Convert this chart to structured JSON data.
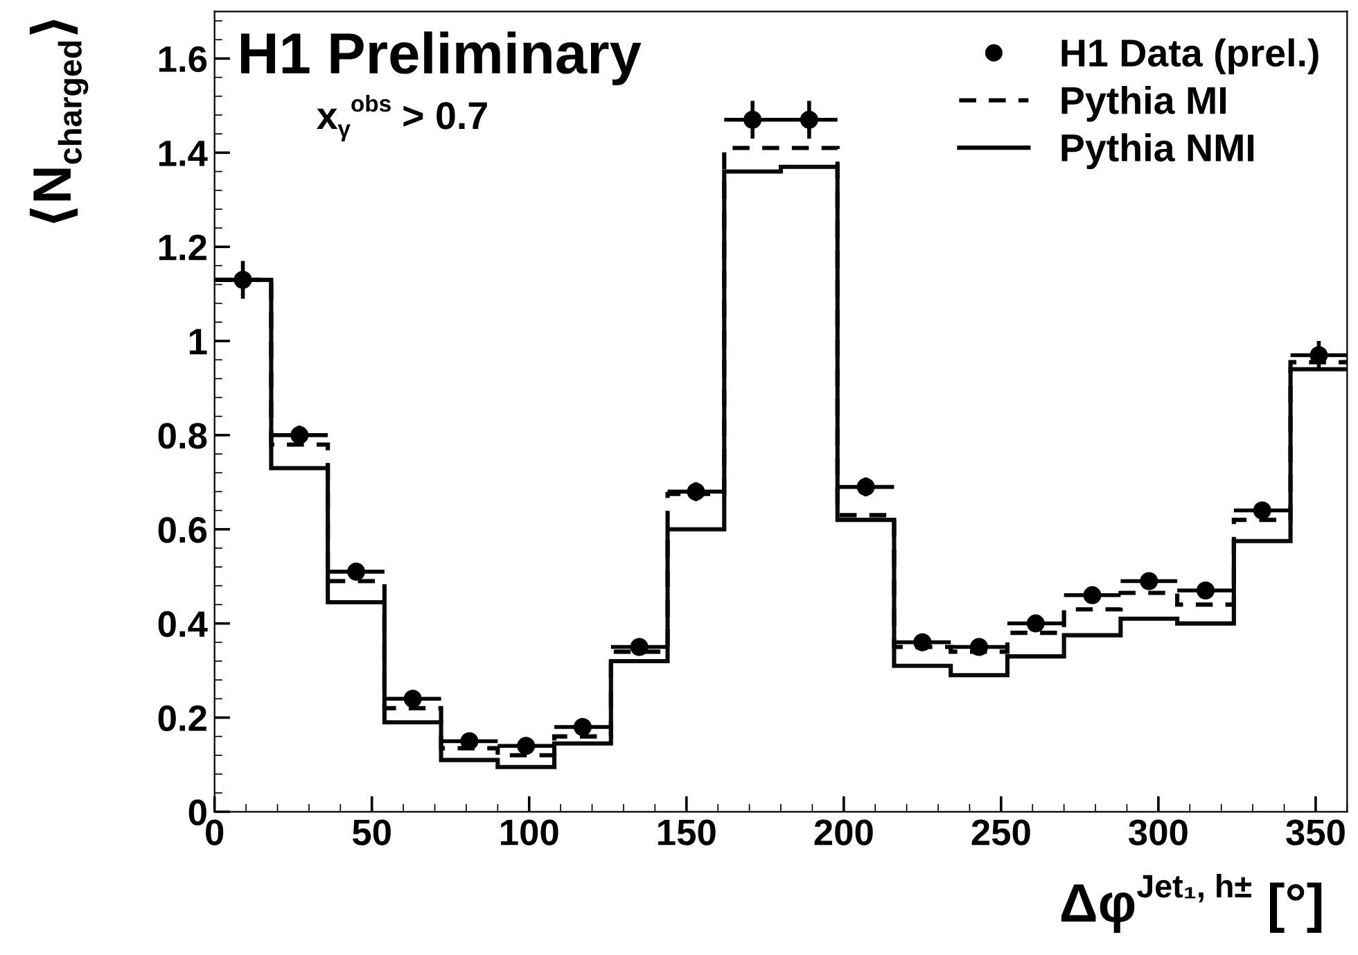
{
  "chart_data": {
    "type": "histogram",
    "title": "H1 Preliminary",
    "xlabel": "Δφ$^{Jet₁, h±}$ [°]",
    "ylabel": "⟨N$_{charged}$⟩",
    "annotations": [
      "x$_{γ}$$^{obs}$ > 0.7"
    ],
    "bins": [
      0,
      18,
      36,
      54,
      72,
      90,
      108,
      126,
      144,
      162,
      180,
      198,
      216,
      234,
      252,
      270,
      288,
      306,
      324,
      342,
      360
    ],
    "series": [
      {
        "name": "H1 Data (prel.)",
        "type": "scatter",
        "color": "#000000",
        "marker": "circle",
        "x": [
          9,
          27,
          45,
          63,
          81,
          99,
          117,
          135,
          153,
          171,
          189,
          207,
          225,
          243,
          261,
          279,
          297,
          315,
          333,
          351
        ],
        "values": [
          1.13,
          0.8,
          0.51,
          0.24,
          0.15,
          0.14,
          0.18,
          0.35,
          0.68,
          1.47,
          1.47,
          0.69,
          0.36,
          0.35,
          0.4,
          0.46,
          0.49,
          0.47,
          0.64,
          0.97
        ],
        "errors": [
          0.04,
          0.02,
          0.015,
          0.01,
          0.01,
          0.01,
          0.01,
          0.01,
          0.02,
          0.04,
          0.04,
          0.02,
          0.01,
          0.01,
          0.015,
          0.015,
          0.015,
          0.015,
          0.015,
          0.03
        ],
        "xerrors": [
          9,
          9,
          9,
          9,
          9,
          9,
          9,
          9,
          9,
          9,
          9,
          9,
          9,
          9,
          9,
          9,
          9,
          9,
          9,
          9
        ]
      },
      {
        "name": "Pythia MI",
        "color": "#000000",
        "line_style": "dashed",
        "values": [
          1.13,
          0.78,
          0.49,
          0.22,
          0.135,
          0.12,
          0.16,
          0.34,
          0.675,
          1.41,
          1.41,
          0.63,
          0.35,
          0.34,
          0.38,
          0.43,
          0.465,
          0.44,
          0.62,
          0.955
        ]
      },
      {
        "name": "Pythia NMI",
        "color": "#0a0a0a",
        "line_style": "solid",
        "values": [
          1.13,
          0.73,
          0.445,
          0.19,
          0.11,
          0.095,
          0.145,
          0.32,
          0.6,
          1.36,
          1.37,
          0.62,
          0.31,
          0.29,
          0.33,
          0.375,
          0.41,
          0.4,
          0.575,
          0.94
        ]
      }
    ],
    "xlim": [
      0,
      360
    ],
    "xticks": [
      0,
      50,
      100,
      150,
      200,
      250,
      300,
      350
    ],
    "ylim": [
      0,
      1.7
    ],
    "yticks": [
      0,
      0.2,
      0.4,
      0.6,
      0.8,
      {
        "value": 1,
        "label": "1"
      },
      1.2,
      1.4,
      1.6
    ],
    "grid": false,
    "legend": "top right"
  }
}
